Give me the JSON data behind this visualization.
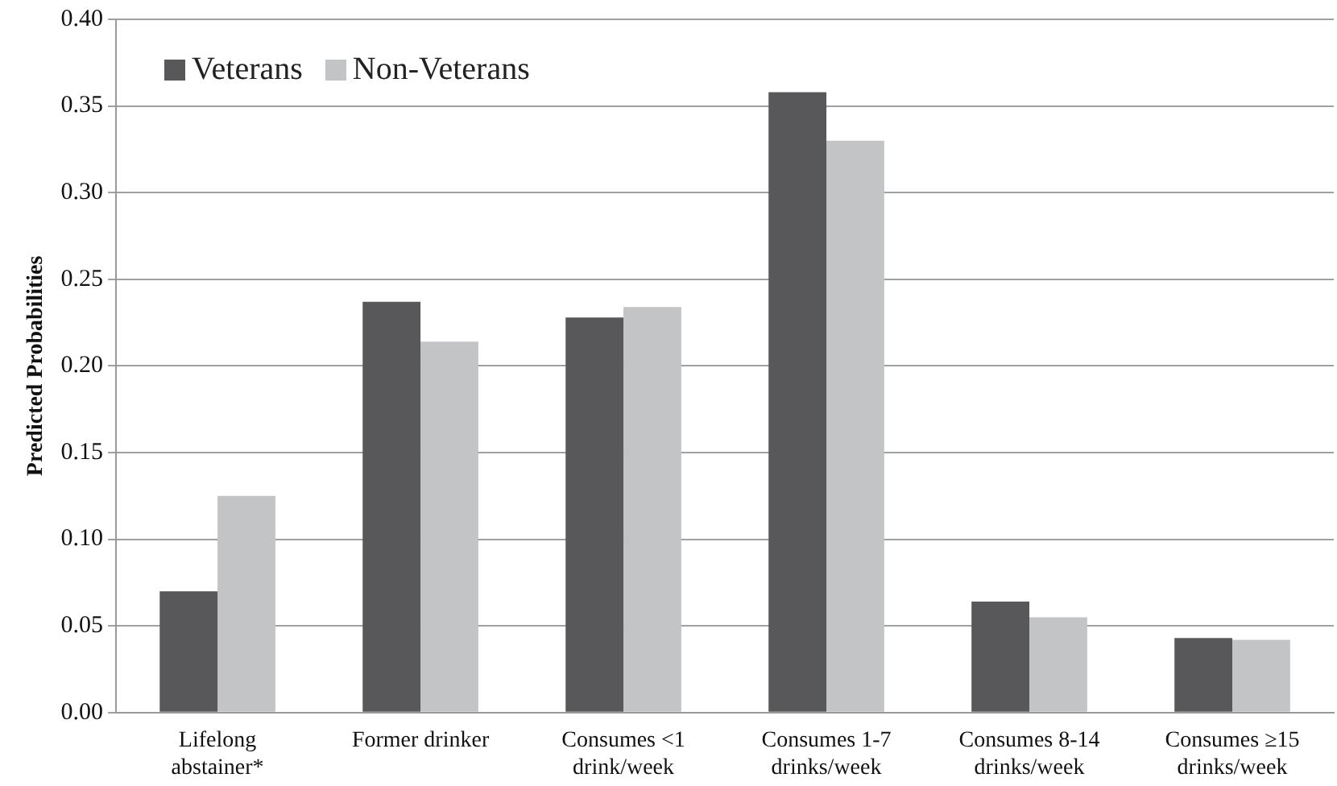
{
  "chart_data": {
    "type": "bar",
    "ylabel": "Predicted Probabilities",
    "categories": [
      "Lifelong\nabstainer*",
      "Former drinker",
      "Consumes <1\ndrink/week",
      "Consumes 1-7\ndrinks/week",
      "Consumes 8-14\ndrinks/week",
      "Consumes ≥15\ndrinks/week"
    ],
    "series": [
      {
        "name": "Veterans",
        "color": "#58585a",
        "values": [
          0.07,
          0.237,
          0.228,
          0.358,
          0.064,
          0.043
        ]
      },
      {
        "name": "Non-Veterans",
        "color": "#c3c4c6",
        "values": [
          0.125,
          0.214,
          0.234,
          0.33,
          0.055,
          0.042
        ]
      }
    ],
    "ylim": [
      0,
      0.4
    ],
    "yticks": [
      {
        "value": 0,
        "label": "0.00"
      },
      0.05,
      {
        "value": 0.1,
        "label": "0.10"
      },
      0.15,
      {
        "value": 0.2,
        "label": "0.20"
      },
      0.25,
      {
        "value": 0.3,
        "label": "0.30"
      },
      0.35,
      {
        "value": 0.4,
        "label": "0.40"
      }
    ],
    "grid": "y",
    "legend": "top left"
  }
}
